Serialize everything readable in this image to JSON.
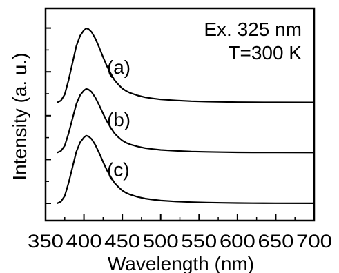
{
  "chart_data": {
    "type": "line",
    "title": "",
    "xlabel": "Wavelength (nm)",
    "ylabel": "Intensity (a. u.)",
    "xlim": [
      350,
      700
    ],
    "ylim": [
      0,
      1
    ],
    "x_ticks": [
      "350",
      "400",
      "450",
      "500",
      "550",
      "600",
      "650",
      "700"
    ],
    "y_tick_labels_shown": false,
    "grid": false,
    "legend": "none",
    "annotations": [
      "Ex. 325 nm",
      "T=300 K"
    ],
    "line_color": "#000000",
    "series": [
      {
        "label": "(a)",
        "offset": 0.517,
        "points": [
          [
            365,
            0.0
          ],
          [
            370,
            0.025
          ],
          [
            375,
            0.11
          ],
          [
            380,
            0.3
          ],
          [
            385,
            0.53
          ],
          [
            390,
            0.76
          ],
          [
            395,
            0.9
          ],
          [
            400,
            0.975
          ],
          [
            403,
            1.0
          ],
          [
            406,
            0.99
          ],
          [
            410,
            0.95
          ],
          [
            415,
            0.86
          ],
          [
            420,
            0.74
          ],
          [
            425,
            0.61
          ],
          [
            430,
            0.49
          ],
          [
            435,
            0.39
          ],
          [
            440,
            0.3
          ],
          [
            445,
            0.24
          ],
          [
            450,
            0.19
          ],
          [
            455,
            0.155
          ],
          [
            460,
            0.13
          ],
          [
            470,
            0.095
          ],
          [
            480,
            0.07
          ],
          [
            490,
            0.055
          ],
          [
            500,
            0.042
          ],
          [
            520,
            0.028
          ],
          [
            540,
            0.018
          ],
          [
            560,
            0.012
          ],
          [
            580,
            0.008
          ],
          [
            600,
            0.005
          ],
          [
            620,
            0.003
          ],
          [
            650,
            0.002
          ],
          [
            700,
            0.001
          ]
        ],
        "peak_height": 0.38
      },
      {
        "label": "(b)",
        "offset": 0.26,
        "points": [
          [
            365,
            0.0
          ],
          [
            370,
            0.025
          ],
          [
            375,
            0.11
          ],
          [
            380,
            0.3
          ],
          [
            385,
            0.53
          ],
          [
            390,
            0.76
          ],
          [
            395,
            0.9
          ],
          [
            400,
            0.975
          ],
          [
            403,
            1.0
          ],
          [
            406,
            0.99
          ],
          [
            410,
            0.95
          ],
          [
            415,
            0.86
          ],
          [
            420,
            0.74
          ],
          [
            425,
            0.61
          ],
          [
            430,
            0.49
          ],
          [
            435,
            0.39
          ],
          [
            440,
            0.3
          ],
          [
            445,
            0.24
          ],
          [
            450,
            0.19
          ],
          [
            455,
            0.155
          ],
          [
            460,
            0.13
          ],
          [
            470,
            0.095
          ],
          [
            480,
            0.07
          ],
          [
            490,
            0.055
          ],
          [
            500,
            0.042
          ],
          [
            520,
            0.028
          ],
          [
            540,
            0.018
          ],
          [
            560,
            0.012
          ],
          [
            580,
            0.008
          ],
          [
            600,
            0.005
          ],
          [
            620,
            0.003
          ],
          [
            650,
            0.002
          ],
          [
            700,
            0.001
          ]
        ],
        "peak_height": 0.327
      },
      {
        "label": "(c)",
        "offset": 0.0,
        "points": [
          [
            365,
            0.0
          ],
          [
            370,
            0.025
          ],
          [
            375,
            0.11
          ],
          [
            380,
            0.3
          ],
          [
            385,
            0.53
          ],
          [
            390,
            0.76
          ],
          [
            395,
            0.9
          ],
          [
            400,
            0.975
          ],
          [
            403,
            1.0
          ],
          [
            406,
            0.99
          ],
          [
            410,
            0.95
          ],
          [
            415,
            0.86
          ],
          [
            420,
            0.74
          ],
          [
            425,
            0.61
          ],
          [
            430,
            0.49
          ],
          [
            435,
            0.39
          ],
          [
            440,
            0.3
          ],
          [
            445,
            0.24
          ],
          [
            450,
            0.19
          ],
          [
            455,
            0.155
          ],
          [
            460,
            0.13
          ],
          [
            470,
            0.095
          ],
          [
            480,
            0.07
          ],
          [
            490,
            0.055
          ],
          [
            500,
            0.042
          ],
          [
            520,
            0.028
          ],
          [
            540,
            0.018
          ],
          [
            560,
            0.012
          ],
          [
            580,
            0.008
          ],
          [
            600,
            0.005
          ],
          [
            620,
            0.003
          ],
          [
            650,
            0.002
          ],
          [
            700,
            0.001
          ]
        ],
        "peak_height": 0.347
      }
    ]
  }
}
